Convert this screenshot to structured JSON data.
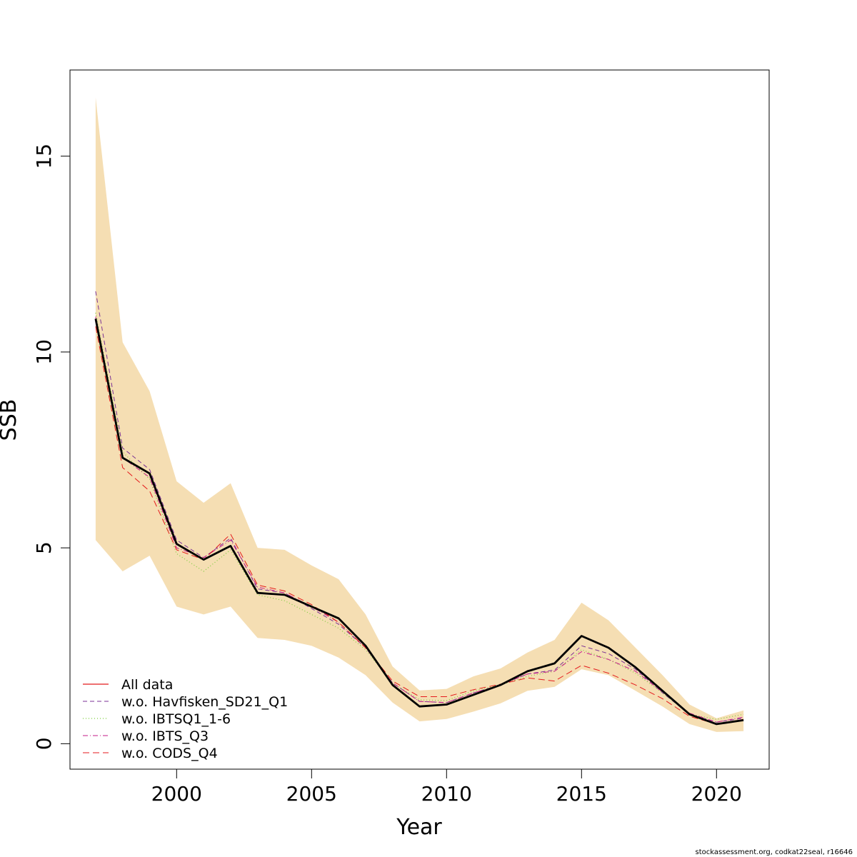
{
  "chart_data": {
    "type": "line",
    "xlabel": "Year",
    "ylabel": "SSB",
    "xlim": [
      1996.05,
      2021.95
    ],
    "ylim": [
      -0.65,
      17.2
    ],
    "x_ticks": [
      "2000",
      "2005",
      "2010",
      "2015",
      "2020"
    ],
    "y_ticks": [
      "0",
      "5",
      "10",
      "15"
    ],
    "grid": false,
    "legend_position": "bottom-left",
    "band_color": "#F5DEB3",
    "x": [
      1997,
      1998,
      1999,
      2000,
      2001,
      2002,
      2003,
      2004,
      2005,
      2006,
      2007,
      2008,
      2009,
      2010,
      2011,
      2012,
      2013,
      2014,
      2015,
      2016,
      2017,
      2018,
      2019,
      2020,
      2021
    ],
    "confidence_band": {
      "lower": [
        5.2,
        4.4,
        4.8,
        3.5,
        3.3,
        3.5,
        2.7,
        2.65,
        2.5,
        2.2,
        1.75,
        1.05,
        0.57,
        0.63,
        0.82,
        1.03,
        1.35,
        1.45,
        1.9,
        1.75,
        1.35,
        0.95,
        0.5,
        0.3,
        0.32
      ],
      "upper": [
        16.5,
        10.25,
        9.0,
        6.7,
        6.15,
        6.65,
        5.0,
        4.95,
        4.55,
        4.2,
        3.3,
        1.97,
        1.36,
        1.4,
        1.72,
        1.92,
        2.33,
        2.65,
        3.6,
        3.15,
        2.45,
        1.75,
        1.0,
        0.65,
        0.85
      ]
    },
    "series": [
      {
        "name": "All data",
        "color": "#000000",
        "dash": "",
        "width": 2.8,
        "values": [
          10.85,
          7.3,
          6.9,
          5.1,
          4.7,
          5.05,
          3.85,
          3.8,
          3.5,
          3.2,
          2.5,
          1.5,
          0.95,
          1.0,
          1.25,
          1.5,
          1.85,
          2.05,
          2.75,
          2.45,
          1.95,
          1.35,
          0.75,
          0.5,
          0.6
        ]
      },
      {
        "name": "w.o. Havfisken_SD21_Q1",
        "color": "#7B3294",
        "dash": "6,4",
        "width": 1,
        "values": [
          11.55,
          7.55,
          7.0,
          5.2,
          4.75,
          5.25,
          3.95,
          3.85,
          3.45,
          3.05,
          2.45,
          1.55,
          1.08,
          1.05,
          1.3,
          1.5,
          1.78,
          1.88,
          2.5,
          2.3,
          1.9,
          1.3,
          0.75,
          0.55,
          0.65
        ]
      },
      {
        "name": "w.o. IBTSQ1_1-6",
        "color": "#7CCD3C",
        "dash": "1,3",
        "width": 1.2,
        "values": [
          11.0,
          7.45,
          6.75,
          4.85,
          4.4,
          4.95,
          3.8,
          3.65,
          3.3,
          2.95,
          2.4,
          1.55,
          1.12,
          1.1,
          1.35,
          1.5,
          1.72,
          1.85,
          2.4,
          2.15,
          1.8,
          1.3,
          0.75,
          0.62,
          0.75
        ]
      },
      {
        "name": "w.o. IBTS_Q3",
        "color": "#C51B8A",
        "dash": "7,3,1,3",
        "width": 1,
        "values": [
          10.9,
          7.3,
          6.8,
          5.0,
          4.75,
          5.2,
          4.0,
          3.85,
          3.5,
          3.1,
          2.45,
          1.55,
          1.08,
          1.05,
          1.3,
          1.5,
          1.78,
          1.85,
          2.35,
          2.15,
          1.85,
          1.32,
          0.78,
          0.55,
          0.68
        ]
      },
      {
        "name": "w.o. CODS_Q4",
        "color": "#E41A1C",
        "dash": "9,5",
        "width": 1,
        "values": [
          10.65,
          7.05,
          6.45,
          4.95,
          4.7,
          5.35,
          4.05,
          3.9,
          3.55,
          3.1,
          2.45,
          1.6,
          1.2,
          1.2,
          1.38,
          1.52,
          1.68,
          1.6,
          2.0,
          1.8,
          1.5,
          1.15,
          0.7,
          0.5,
          0.62
        ]
      }
    ]
  },
  "credit": "stockassessment.org, codkat22seal, r16646"
}
